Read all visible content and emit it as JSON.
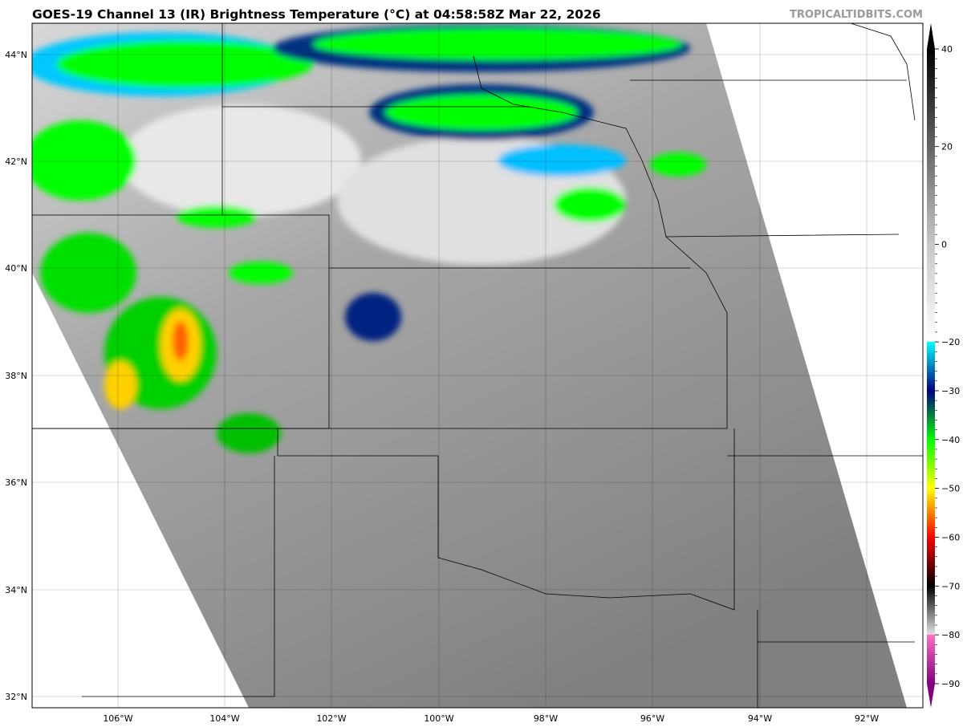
{
  "title": "GOES-19 Channel 13 (IR) Brightness Temperature (°C) at 04:58:58Z Mar 22, 2026",
  "brand": "TROPICALTIDBITS.COM",
  "map": {
    "lat_labels": [
      "44°N",
      "42°N",
      "40°N",
      "38°N",
      "36°N",
      "34°N",
      "32°N"
    ],
    "lon_labels": [
      "106°W",
      "104°W",
      "102°W",
      "100°W",
      "98°W",
      "96°W",
      "94°W",
      "92°W"
    ]
  },
  "colorbar": {
    "range": [
      -90,
      40
    ],
    "tick_labels": [
      "40",
      "20",
      "0",
      "−20",
      "−30",
      "−40",
      "−50",
      "−60",
      "−70",
      "−80",
      "−90"
    ],
    "tick_values": [
      40,
      20,
      0,
      -20,
      -30,
      -40,
      -50,
      -60,
      -70,
      -80,
      -90
    ],
    "stops": [
      {
        "v": 40,
        "c": "#000000"
      },
      {
        "v": 0,
        "c": "#c8c8c8"
      },
      {
        "v": -19.9,
        "c": "#ffffff"
      },
      {
        "v": -20,
        "c": "#00ffff"
      },
      {
        "v": -25,
        "c": "#0080c0"
      },
      {
        "v": -30,
        "c": "#000080"
      },
      {
        "v": -35,
        "c": "#008040"
      },
      {
        "v": -40,
        "c": "#00ff00"
      },
      {
        "v": -50,
        "c": "#ffff00"
      },
      {
        "v": -55,
        "c": "#ff8000"
      },
      {
        "v": -60,
        "c": "#ff0000"
      },
      {
        "v": -70,
        "c": "#000000"
      },
      {
        "v": -79.9,
        "c": "#e0e0e0"
      },
      {
        "v": -80,
        "c": "#ff70c0"
      },
      {
        "v": -90,
        "c": "#800080"
      }
    ]
  }
}
